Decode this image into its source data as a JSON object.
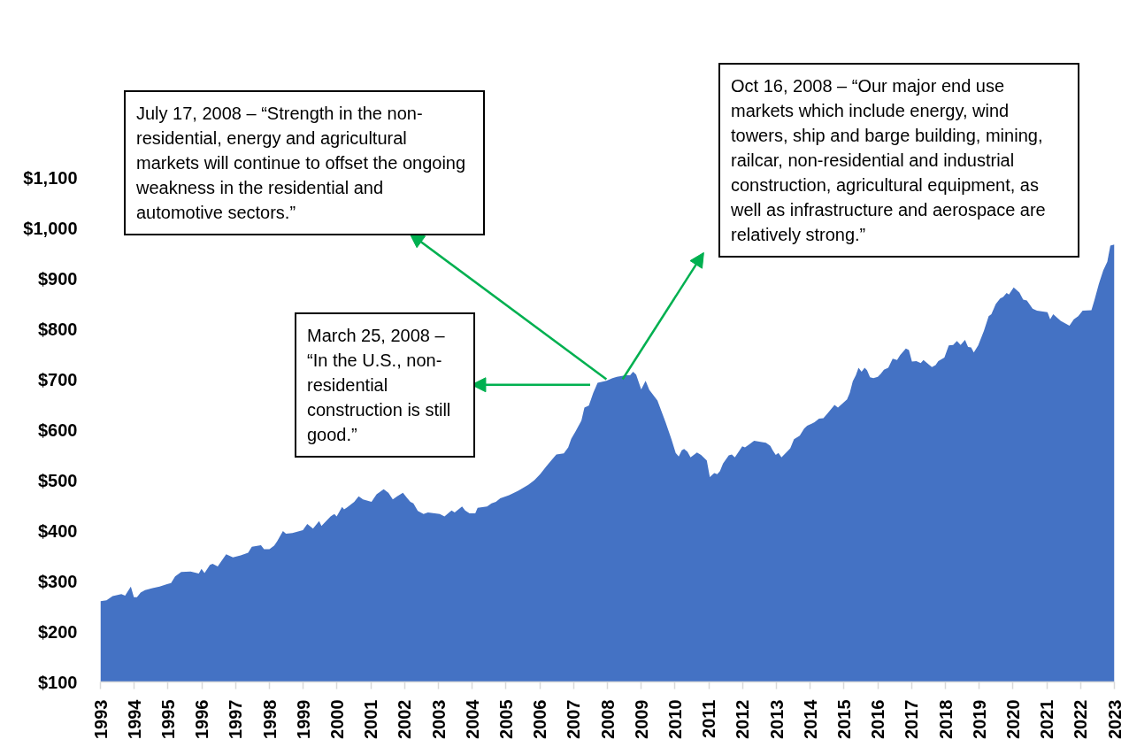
{
  "chart_data": {
    "type": "area",
    "x": [
      1993.0,
      1993.18,
      1993.36,
      1993.62,
      1993.73,
      1993.9,
      1993.99,
      1994.08,
      1994.19,
      1994.32,
      1994.54,
      1994.75,
      1994.97,
      1995.09,
      1995.21,
      1995.39,
      1995.67,
      1995.91,
      1995.99,
      1996.08,
      1996.24,
      1996.32,
      1996.47,
      1996.72,
      1996.92,
      1997.15,
      1997.37,
      1997.48,
      1997.75,
      1997.84,
      1998.0,
      1998.14,
      1998.23,
      1998.4,
      1998.49,
      1998.68,
      1998.99,
      1999.12,
      1999.29,
      1999.47,
      1999.54,
      1999.81,
      1999.92,
      1999.99,
      2000.15,
      2000.21,
      2000.3,
      2000.51,
      2000.64,
      2000.77,
      2001.02,
      2001.17,
      2001.38,
      2001.52,
      2001.65,
      2001.78,
      2001.95,
      2002.07,
      2002.17,
      2002.26,
      2002.39,
      2002.56,
      2002.69,
      2003.04,
      2003.18,
      2003.39,
      2003.48,
      2003.7,
      2003.79,
      2003.92,
      2004.09,
      2004.16,
      2004.44,
      2004.57,
      2004.7,
      2004.83,
      2005.09,
      2005.36,
      2005.66,
      2005.84,
      2006.01,
      2006.19,
      2006.36,
      2006.49,
      2006.71,
      2006.84,
      2006.93,
      2007.06,
      2007.23,
      2007.32,
      2007.45,
      2007.58,
      2007.71,
      2007.97,
      2008.15,
      2008.28,
      2008.54,
      2008.67,
      2008.76,
      2008.85,
      2009.0,
      2009.13,
      2009.24,
      2009.48,
      2009.72,
      2009.89,
      2010.02,
      2010.11,
      2010.2,
      2010.27,
      2010.37,
      2010.46,
      2010.65,
      2010.77,
      2010.94,
      2011.03,
      2011.16,
      2011.25,
      2011.33,
      2011.42,
      2011.59,
      2011.68,
      2011.77,
      2011.99,
      2012.07,
      2012.2,
      2012.34,
      2012.69,
      2012.82,
      2012.89,
      2012.98,
      2013.06,
      2013.15,
      2013.41,
      2013.52,
      2013.69,
      2013.82,
      2013.91,
      2014.04,
      2014.13,
      2014.26,
      2014.39,
      2014.52,
      2014.72,
      2014.82,
      2015.09,
      2015.17,
      2015.26,
      2015.35,
      2015.43,
      2015.52,
      2015.61,
      2015.68,
      2015.77,
      2015.87,
      2016.0,
      2016.09,
      2016.18,
      2016.31,
      2016.44,
      2016.57,
      2016.66,
      2016.83,
      2016.92,
      2017.01,
      2017.14,
      2017.27,
      2017.35,
      2017.6,
      2017.71,
      2017.79,
      2017.97,
      2018.1,
      2018.23,
      2018.34,
      2018.45,
      2018.58,
      2018.67,
      2018.76,
      2018.84,
      2018.97,
      2019.14,
      2019.28,
      2019.36,
      2019.49,
      2019.62,
      2019.71,
      2019.81,
      2019.88,
      2020.02,
      2020.19,
      2020.3,
      2020.41,
      2020.58,
      2020.71,
      2021.02,
      2021.1,
      2021.19,
      2021.41,
      2021.67,
      2021.8,
      2021.93,
      2022.06,
      2022.32,
      2022.41,
      2022.54,
      2022.67,
      2022.79,
      2022.88,
      2023.0
    ],
    "series": [
      {
        "color": "#4472c4",
        "values": [
          260,
          262,
          270,
          274,
          271,
          289,
          268,
          268,
          277,
          282,
          286,
          289,
          294,
          296,
          309,
          318,
          319,
          315,
          324,
          316,
          332,
          334,
          329,
          353,
          347,
          351,
          356,
          368,
          371,
          363,
          363,
          370,
          379,
          399,
          394,
          395,
          401,
          413,
          404,
          419,
          409,
          428,
          433,
          428,
          447,
          442,
          446,
          457,
          468,
          462,
          457,
          472,
          482,
          475,
          462,
          468,
          475,
          465,
          457,
          454,
          439,
          433,
          436,
          433,
          428,
          440,
          436,
          448,
          440,
          434,
          434,
          445,
          448,
          454,
          457,
          464,
          470,
          479,
          491,
          500,
          512,
          527,
          541,
          551,
          553,
          565,
          582,
          597,
          618,
          644,
          648,
          673,
          693,
          697,
          702,
          705,
          708,
          708,
          715,
          709,
          680,
          697,
          679,
          658,
          615,
          582,
          554,
          547,
          559,
          562,
          556,
          545,
          555,
          550,
          539,
          506,
          514,
          512,
          518,
          533,
          549,
          551,
          545,
          567,
          565,
          571,
          578,
          574,
          568,
          559,
          550,
          554,
          545,
          563,
          581,
          588,
          602,
          608,
          612,
          615,
          622,
          623,
          633,
          649,
          644,
          660,
          673,
          696,
          708,
          723,
          715,
          723,
          718,
          704,
          702,
          705,
          711,
          719,
          723,
          741,
          738,
          748,
          761,
          758,
          735,
          736,
          732,
          738,
          724,
          728,
          736,
          743,
          767,
          768,
          776,
          768,
          778,
          764,
          763,
          753,
          767,
          796,
          825,
          829,
          849,
          860,
          863,
          871,
          868,
          882,
          872,
          858,
          856,
          840,
          836,
          833,
          819,
          829,
          816,
          806,
          819,
          825,
          836,
          837,
          857,
          889,
          916,
          933,
          965,
          967
        ]
      }
    ],
    "xlim": [
      1993,
      2023
    ],
    "xticks": [
      1993,
      1994,
      1995,
      1996,
      1997,
      1998,
      1999,
      2000,
      2001,
      2002,
      2003,
      2004,
      2005,
      2006,
      2007,
      2008,
      2009,
      2010,
      2011,
      2012,
      2013,
      2014,
      2015,
      2016,
      2017,
      2018,
      2019,
      2020,
      2021,
      2022,
      2023
    ],
    "ylim": [
      100,
      1100
    ],
    "yticks": [
      {
        "value": 100,
        "label": "$100"
      },
      {
        "value": 200,
        "label": "$200"
      },
      {
        "value": 300,
        "label": "$300"
      },
      {
        "value": 400,
        "label": "$400"
      },
      {
        "value": 500,
        "label": "$500"
      },
      {
        "value": 600,
        "label": "$600"
      },
      {
        "value": 700,
        "label": "$700"
      },
      {
        "value": 800,
        "label": "$800"
      },
      {
        "value": 900,
        "label": "$900"
      },
      {
        "value": 1000,
        "label": "$1,000"
      },
      {
        "value": 1100,
        "label": "$1,100"
      }
    ],
    "grid": false,
    "annotations": [
      "July 17, 2008 – “Strength in the non-residential, energy and agricultural markets will continue to offset the ongoing weakness in the residential and automotive sectors.”",
      "March 25, 2008 – “In the U.S., non-residential construction is still good.”",
      "Oct 16, 2008 – “Our major end use markets which include energy, wind towers, ship and barge building, mining, railcar, non-residential and industrial construction, agricultural equipment, as well as infrastructure and aerospace are relatively strong.”"
    ]
  }
}
